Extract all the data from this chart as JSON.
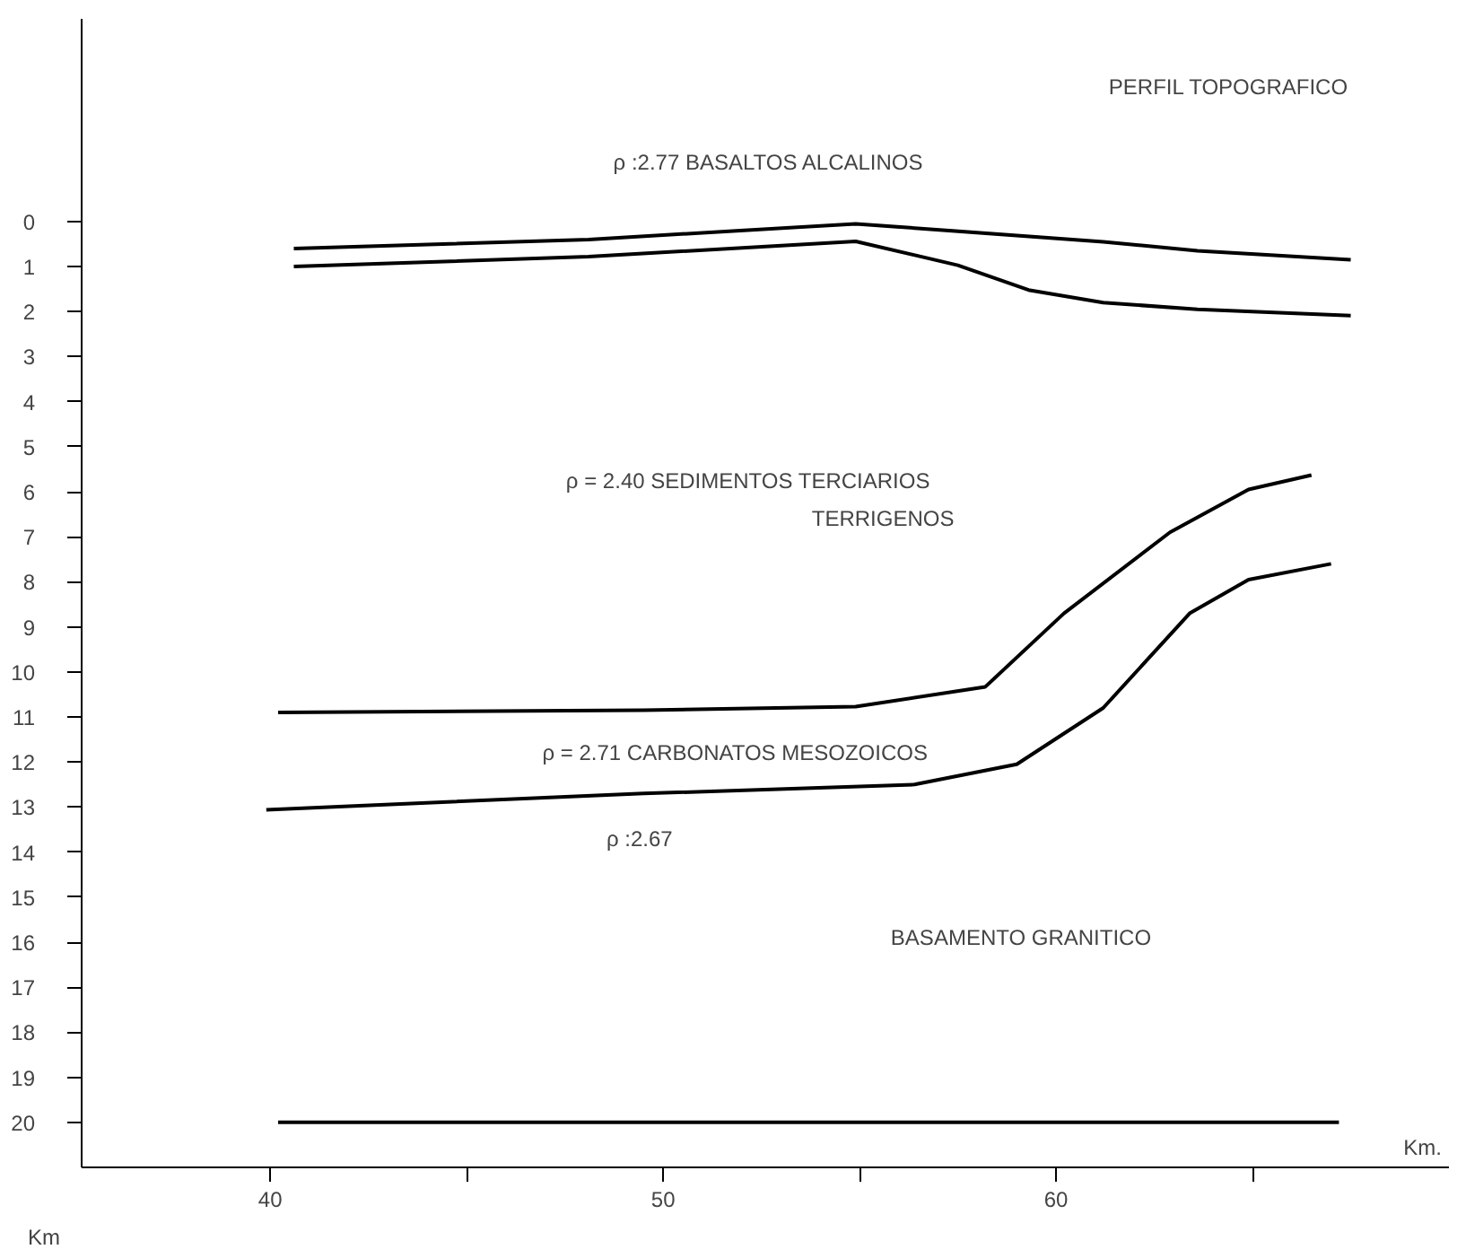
{
  "chart_data": {
    "type": "line",
    "xlabel": "Km.",
    "ylabel": "Km",
    "xlim": [
      35.2,
      70
    ],
    "ylim": [
      21,
      -4.5
    ],
    "xticks": [
      40,
      {
        "value": 45,
        "label": null
      },
      50,
      {
        "value": 55,
        "label": null
      },
      60,
      {
        "value": 65,
        "label": null
      }
    ],
    "yticks": [
      0,
      1,
      2,
      3,
      4,
      5,
      6,
      7,
      8,
      9,
      10,
      11,
      12,
      13,
      14,
      15,
      16,
      17,
      18,
      19,
      20
    ],
    "grid": false,
    "marker": "none",
    "line_style": "solid",
    "series": [
      {
        "color": "#000000",
        "x": [
          40.6,
          48.1,
          54.9,
          61.2,
          63.6,
          67.5
        ],
        "values": [
          0.6,
          0.4,
          0.05,
          0.45,
          0.65,
          0.85
        ]
      },
      {
        "color": "#000000",
        "x": [
          40.6,
          48.1,
          54.9,
          57.5,
          59.3,
          61.2,
          63.6,
          67.5
        ],
        "values": [
          1.0,
          0.78,
          0.44,
          0.97,
          1.52,
          1.8,
          1.95,
          2.09
        ]
      },
      {
        "color": "#000000",
        "x": [
          40.2,
          49.5,
          54.9,
          58.2,
          60.2,
          62.9,
          64.9,
          66.5
        ],
        "values": [
          10.9,
          10.85,
          10.77,
          10.33,
          8.7,
          6.9,
          5.95,
          5.63
        ]
      },
      {
        "color": "#000000",
        "x": [
          39.9,
          49.5,
          56.4,
          59.0,
          61.2,
          63.4,
          64.9,
          67.0
        ],
        "values": [
          13.06,
          12.7,
          12.5,
          12.05,
          10.8,
          8.7,
          7.95,
          7.6
        ]
      },
      {
        "color": "#000000",
        "x": [
          40.2,
          67.2
        ],
        "values": [
          20,
          20
        ]
      }
    ],
    "annotations": [
      "PERFIL TOPOGRAFICO",
      "ρ :2.77    BASALTOS ALCALINOS",
      "ρ = 2.40    SEDIMENTOS TERCIARIOS",
      "TERRIGENOS",
      "ρ = 2.71  CARBONATOS MESOZOICOS",
      "ρ :2.67",
      "BASAMENTO GRANITICO"
    ]
  }
}
